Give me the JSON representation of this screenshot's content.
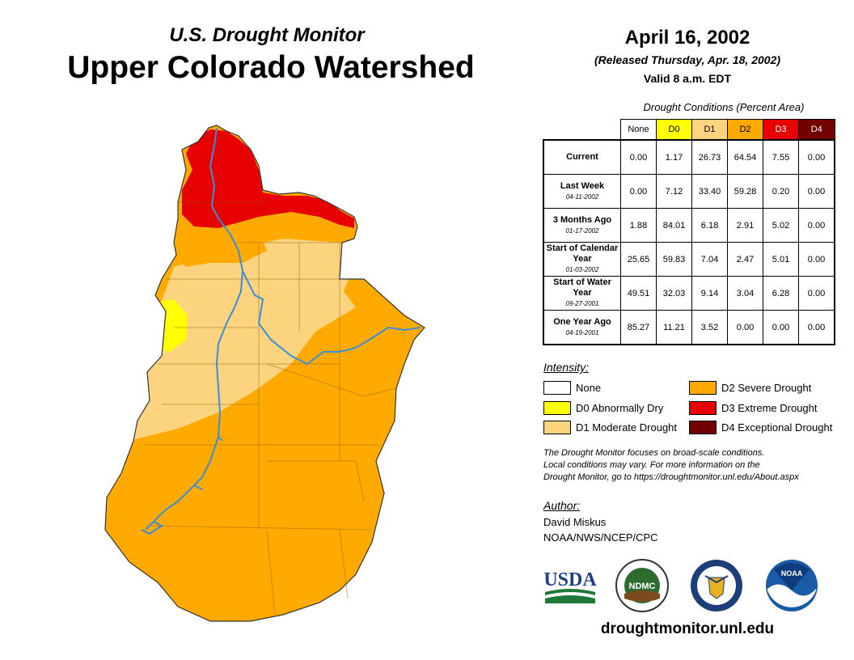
{
  "header": {
    "subtitle": "U.S. Drought Monitor",
    "title": "Upper Colorado Watershed",
    "date": "April 16, 2002",
    "released": "(Released Thursday, Apr. 18, 2002)",
    "valid": "Valid 8 a.m. EDT"
  },
  "table": {
    "caption": "Drought Conditions (Percent Area)",
    "columns": [
      "None",
      "D0",
      "D1",
      "D2",
      "D3",
      "D4"
    ],
    "rows": [
      {
        "label": "Current",
        "date": "",
        "values": [
          "0.00",
          "1.17",
          "26.73",
          "64.54",
          "7.55",
          "0.00"
        ]
      },
      {
        "label": "Last Week",
        "date": "04-11-2002",
        "values": [
          "0.00",
          "7.12",
          "33.40",
          "59.28",
          "0.20",
          "0.00"
        ]
      },
      {
        "label": "3 Months Ago",
        "date": "01-17-2002",
        "values": [
          "1.88",
          "84.01",
          "6.18",
          "2.91",
          "5.02",
          "0.00"
        ]
      },
      {
        "label": "Start of Calendar Year",
        "date": "01-03-2002",
        "values": [
          "25.65",
          "59.83",
          "7.04",
          "2.47",
          "5.01",
          "0.00"
        ]
      },
      {
        "label": "Start of Water Year",
        "date": "09-27-2001",
        "values": [
          "49.51",
          "32.03",
          "9.14",
          "3.04",
          "6.28",
          "0.00"
        ]
      },
      {
        "label": "One Year Ago",
        "date": "04-19-2001",
        "values": [
          "85.27",
          "11.21",
          "3.52",
          "0.00",
          "0.00",
          "0.00"
        ]
      }
    ]
  },
  "legend": {
    "title": "Intensity:",
    "items": [
      {
        "label": "None",
        "color": "#ffffff"
      },
      {
        "label": "D0 Abnormally Dry",
        "color": "#ffff00"
      },
      {
        "label": "D1 Moderate Drought",
        "color": "#fcd37f"
      },
      {
        "label": "D2 Severe Drought",
        "color": "#ffaa00"
      },
      {
        "label": "D3 Extreme Drought",
        "color": "#e60000"
      },
      {
        "label": "D4 Exceptional Drought",
        "color": "#730000"
      }
    ]
  },
  "note": {
    "line1": "The Drought Monitor focuses on broad-scale conditions.",
    "line2": "Local conditions may vary. For more information on the",
    "line3": "Drought Monitor, go to https://droughtmonitor.unl.edu/About.aspx"
  },
  "author": {
    "title": "Author:",
    "name": "David Miskus",
    "org": "NOAA/NWS/NCEP/CPC"
  },
  "logos": {
    "usda": "USDA",
    "ndmc": "NDMC",
    "noaa": "NOAA"
  },
  "url": "droughtmonitor.unl.edu",
  "colors": {
    "none": "#ffffff",
    "d0": "#ffff00",
    "d1": "#fcd37f",
    "d2": "#ffaa00",
    "d3": "#e60000",
    "d4": "#730000",
    "river": "#3a8fd9"
  }
}
